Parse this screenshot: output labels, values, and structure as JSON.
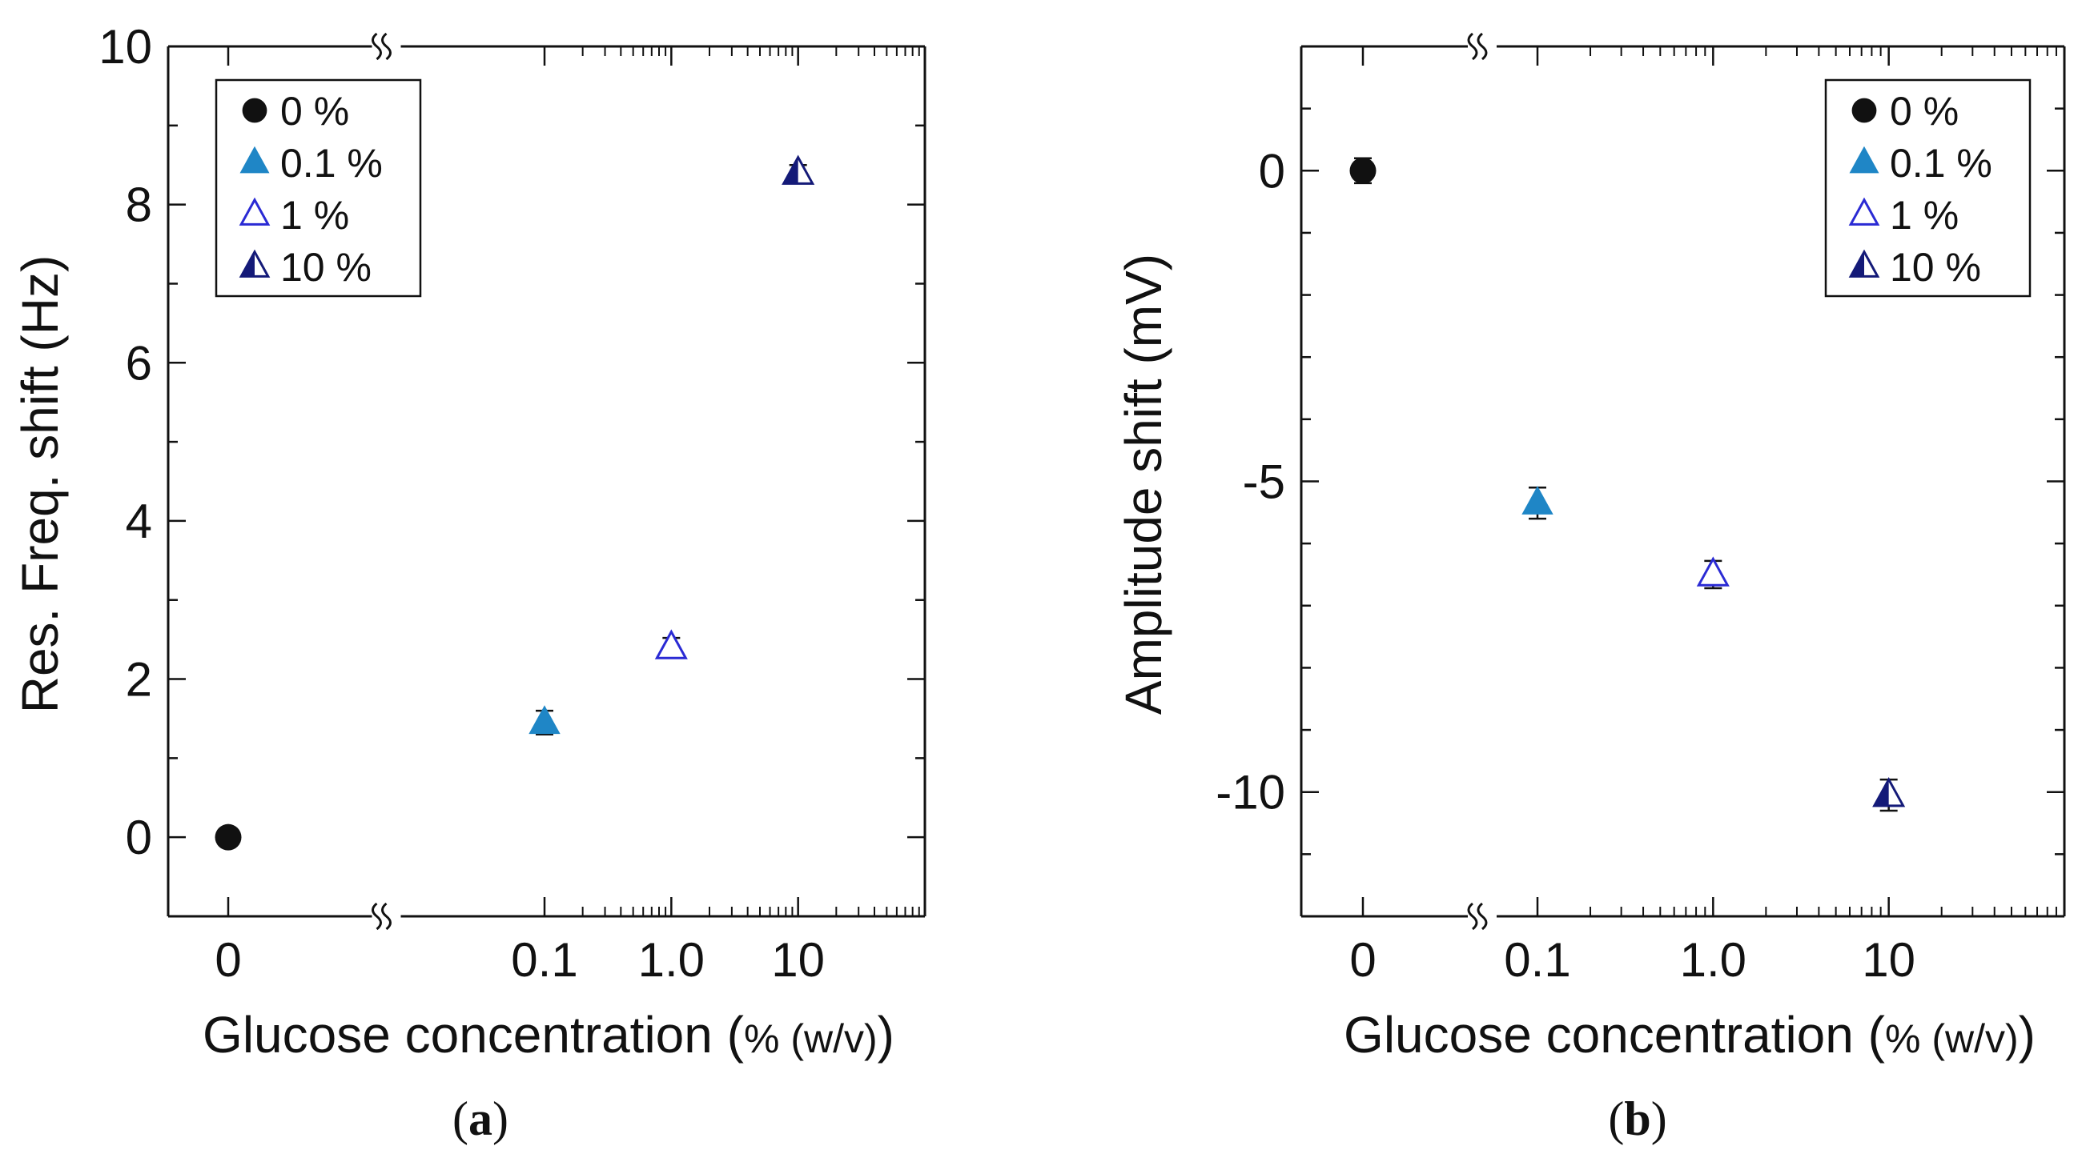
{
  "chart_data": [
    {
      "type": "scatter",
      "panel_label_open": "(",
      "panel_label": "a",
      "panel_label_close": ")",
      "xlabel_main": "Glucose concentration (",
      "xlabel_pct": "%",
      "xlabel_unit": " (w/v)",
      "xlabel_close": ")",
      "ylabel": "Res. Freq. shift (Hz)",
      "xscale": "log with axis break between 0 and 0.1",
      "xticks": [
        "0",
        "0.1",
        "1.0",
        "10"
      ],
      "ylim": [
        -1,
        10
      ],
      "yticks": [
        0,
        2,
        4,
        6,
        8,
        10
      ],
      "legend_position": "top-left",
      "series": [
        {
          "name": "0 %",
          "marker": "circle-filled",
          "color": "#111111",
          "x": 0,
          "y": 0.0,
          "err": 0.05
        },
        {
          "name": "0.1 %",
          "marker": "triangle-filled",
          "color": "#1f86c6",
          "x": 0.1,
          "y": 1.45,
          "err": 0.15
        },
        {
          "name": "1 %",
          "marker": "triangle-open",
          "color": "#2a2ad4",
          "x": 1.0,
          "y": 2.4,
          "err": 0.12
        },
        {
          "name": "10 %",
          "marker": "triangle-half",
          "color": "#141a78",
          "x": 10,
          "y": 8.4,
          "err": 0.1
        }
      ]
    },
    {
      "type": "scatter",
      "panel_label_open": "(",
      "panel_label": "b",
      "panel_label_close": ")",
      "xlabel_main": "Glucose concentration (",
      "xlabel_pct": "%",
      "xlabel_unit": " (w/v)",
      "xlabel_close": ")",
      "ylabel": "Amplitude shift (mV)",
      "xscale": "log with axis break between 0 and 0.1",
      "xticks": [
        "0",
        "0.1",
        "1.0",
        "10"
      ],
      "ylim": [
        -12,
        2
      ],
      "yticks": [
        0,
        -5,
        -10
      ],
      "legend_position": "top-right",
      "series": [
        {
          "name": "0 %",
          "marker": "circle-filled",
          "color": "#111111",
          "x": 0,
          "y": 0.0,
          "err": 0.2
        },
        {
          "name": "0.1 %",
          "marker": "triangle-filled",
          "color": "#1f86c6",
          "x": 0.1,
          "y": -5.35,
          "err": 0.25
        },
        {
          "name": "1 %",
          "marker": "triangle-open",
          "color": "#2a2ad4",
          "x": 1.0,
          "y": -6.5,
          "err": 0.22
        },
        {
          "name": "10 %",
          "marker": "triangle-half",
          "color": "#141a78",
          "x": 10,
          "y": -10.05,
          "err": 0.25
        }
      ]
    }
  ]
}
